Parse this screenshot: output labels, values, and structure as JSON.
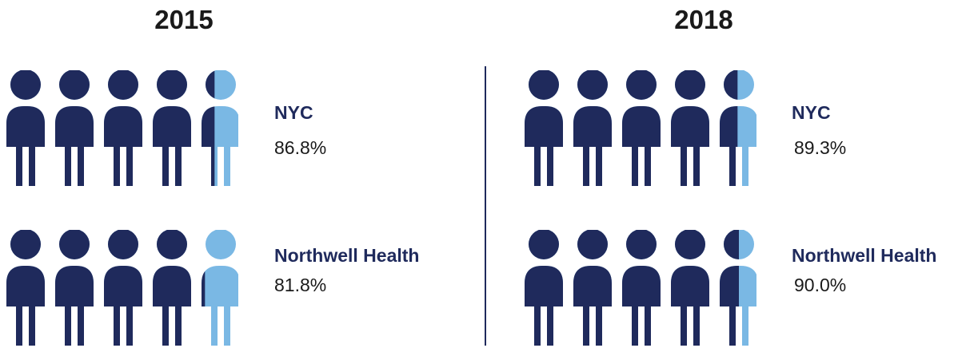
{
  "chart_data": {
    "type": "pictogram",
    "unit": "%",
    "icons_per_row": 5,
    "colors": {
      "filled": "#1f2a5c",
      "remainder": "#7ab8e4"
    },
    "panels": [
      {
        "year": "2015",
        "rows": [
          {
            "name": "NYC",
            "value_text": "86.8%",
            "value": 86.8
          },
          {
            "name": "Northwell Health",
            "value_text": "81.8%",
            "value": 81.8
          }
        ]
      },
      {
        "year": "2018",
        "rows": [
          {
            "name": "NYC",
            "value_text": "89.3%",
            "value": 89.3
          },
          {
            "name": "Northwell Health",
            "value_text": "90.0%",
            "value": 90.0
          }
        ]
      }
    ]
  }
}
